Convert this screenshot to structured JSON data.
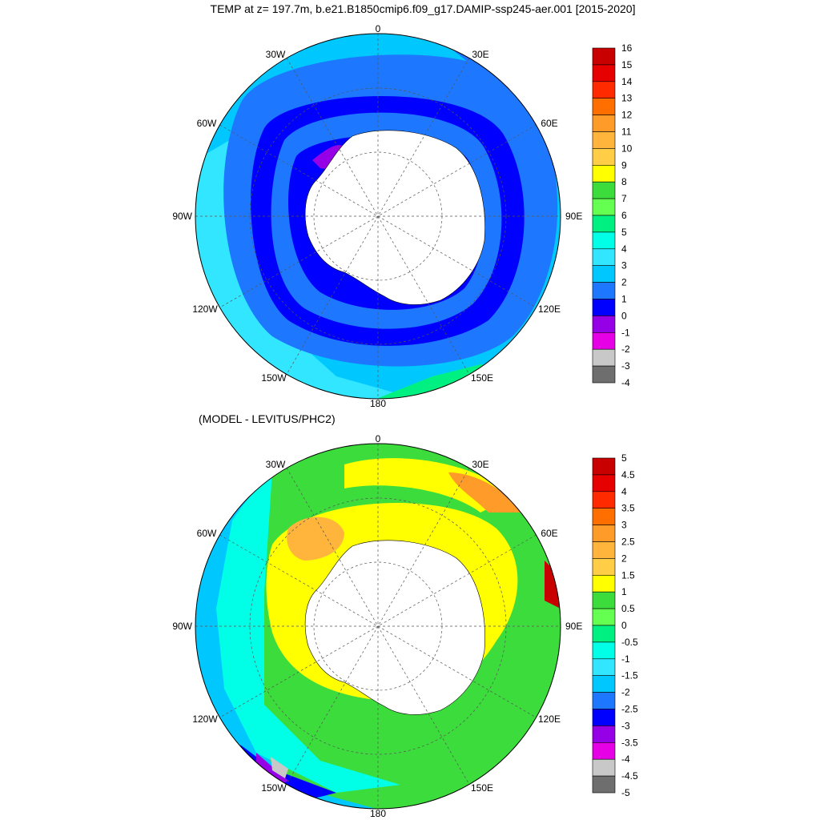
{
  "title": "TEMP at z= 197.7m, b.e21.B1850cmip6.f09_g17.DAMIP-ssp245-aer.001 [2015-2020]",
  "panels": [
    {
      "id": "temp",
      "subtitle": "",
      "lon_labels": {
        "0": "0",
        "30E": "30E",
        "60E": "60E",
        "90E": "90E",
        "120E": "120E",
        "150E": "150E",
        "180": "180",
        "150W": "150W",
        "120W": "120W",
        "90W": "90W",
        "60W": "60W",
        "30W": "30W"
      },
      "colorbar": {
        "labels": [
          "16",
          "15",
          "14",
          "13",
          "12",
          "11",
          "10",
          "9",
          "8",
          "7",
          "6",
          "5",
          "4",
          "3",
          "2",
          "1",
          "0",
          "-1",
          "-2",
          "-3",
          "-4"
        ],
        "colors": [
          "#c80000",
          "#e60000",
          "#ff2a00",
          "#ff6f00",
          "#ff9b28",
          "#ffb43c",
          "#ffcd46",
          "#ffff00",
          "#3cdc3c",
          "#64ff50",
          "#00f082",
          "#00ffe6",
          "#32e6ff",
          "#00c8ff",
          "#1e78ff",
          "#0000ff",
          "#9600e6",
          "#e600e6",
          "#c8c8c8",
          "#6e6e6e"
        ]
      },
      "field": {
        "levels_ring": [
          {
            "color": "#32e6ff"
          },
          {
            "color": "#00c8ff"
          },
          {
            "color": "#1e78ff"
          },
          {
            "color": "#0000ff"
          },
          {
            "color": "#9600e6"
          }
        ]
      }
    },
    {
      "id": "diff",
      "subtitle": "(MODEL - LEVITUS/PHC2)",
      "lon_labels": {
        "0": "0",
        "30E": "30E",
        "60E": "60E",
        "90E": "90E",
        "120E": "120E",
        "150E": "150E",
        "180": "180",
        "150W": "150W",
        "120W": "120W",
        "90W": "90W",
        "60W": "60W",
        "30W": "30W"
      },
      "colorbar": {
        "labels": [
          "5",
          "4.5",
          "4",
          "3.5",
          "3",
          "2.5",
          "2",
          "1.5",
          "1",
          "0.5",
          "0",
          "-0.5",
          "-1",
          "-1.5",
          "-2",
          "-2.5",
          "-3",
          "-3.5",
          "-4",
          "-4.5",
          "-5"
        ],
        "colors": [
          "#c80000",
          "#e60000",
          "#ff2a00",
          "#ff6f00",
          "#ff9b28",
          "#ffb43c",
          "#ffcd46",
          "#ffff00",
          "#3cdc3c",
          "#64ff50",
          "#00f082",
          "#00ffe6",
          "#32e6ff",
          "#00c8ff",
          "#1e78ff",
          "#0000ff",
          "#9600e6",
          "#e600e6",
          "#c8c8c8",
          "#6e6e6e"
        ]
      }
    }
  ],
  "colors": {
    "land": "#ffffff",
    "outline": "#000000",
    "grid": "#555555"
  }
}
